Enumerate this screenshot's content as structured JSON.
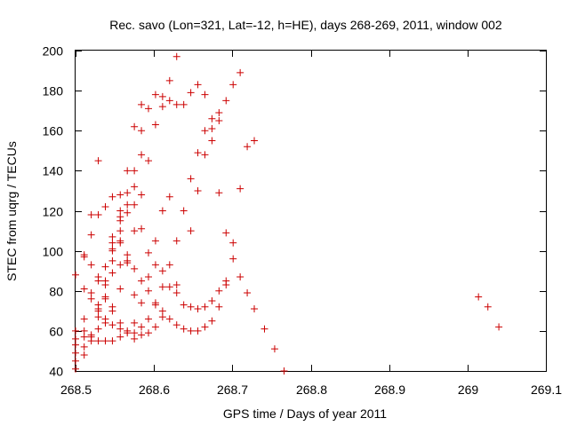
{
  "chart_data": {
    "type": "scatter",
    "title": "Rec. savo (Lon=321, Lat=-12, h=HE), days 268-269, 2011, window 002",
    "xlabel": "GPS time / Days of year 2011",
    "ylabel": "STEC from uqrg / TECUs",
    "xlim": [
      268.5,
      269.1
    ],
    "ylim": [
      40,
      200
    ],
    "xticks": [
      268.5,
      268.6,
      268.7,
      268.8,
      268.9,
      269,
      269.1
    ],
    "xtick_labels": [
      "268.5",
      "268.6",
      "268.7",
      "268.8",
      "268.9",
      "269",
      "269.1"
    ],
    "yticks": [
      40,
      60,
      80,
      100,
      120,
      140,
      160,
      180,
      200
    ],
    "ytick_labels": [
      "40",
      "60",
      "80",
      "100",
      "120",
      "140",
      "160",
      "180",
      "200"
    ],
    "marker": "+",
    "color": "#cc0000",
    "points": [
      [
        268.5,
        88
      ],
      [
        268.5,
        60
      ],
      [
        268.5,
        56
      ],
      [
        268.5,
        53
      ],
      [
        268.5,
        49
      ],
      [
        268.5,
        45
      ],
      [
        268.5,
        41
      ],
      [
        268.511,
        98
      ],
      [
        268.511,
        97
      ],
      [
        268.511,
        81
      ],
      [
        268.511,
        66
      ],
      [
        268.511,
        60
      ],
      [
        268.511,
        57
      ],
      [
        268.511,
        52
      ],
      [
        268.511,
        48
      ],
      [
        268.52,
        118
      ],
      [
        268.52,
        108
      ],
      [
        268.52,
        93
      ],
      [
        268.52,
        79
      ],
      [
        268.52,
        76
      ],
      [
        268.52,
        58
      ],
      [
        268.52,
        57
      ],
      [
        268.52,
        55
      ],
      [
        268.529,
        145
      ],
      [
        268.529,
        118
      ],
      [
        268.529,
        87
      ],
      [
        268.529,
        85
      ],
      [
        268.529,
        73
      ],
      [
        268.529,
        71
      ],
      [
        268.529,
        70
      ],
      [
        268.529,
        67
      ],
      [
        268.529,
        61
      ],
      [
        268.529,
        55
      ],
      [
        268.538,
        122
      ],
      [
        268.538,
        92
      ],
      [
        268.538,
        85
      ],
      [
        268.538,
        83
      ],
      [
        268.538,
        77
      ],
      [
        268.538,
        76
      ],
      [
        268.538,
        66
      ],
      [
        268.538,
        64
      ],
      [
        268.538,
        55
      ],
      [
        268.547,
        127
      ],
      [
        268.547,
        107
      ],
      [
        268.547,
        104
      ],
      [
        268.547,
        101
      ],
      [
        268.547,
        100
      ],
      [
        268.547,
        95
      ],
      [
        268.547,
        89
      ],
      [
        268.547,
        72
      ],
      [
        268.547,
        70
      ],
      [
        268.547,
        63
      ],
      [
        268.547,
        55
      ],
      [
        268.557,
        128
      ],
      [
        268.557,
        120
      ],
      [
        268.557,
        117
      ],
      [
        268.557,
        115
      ],
      [
        268.557,
        110
      ],
      [
        268.557,
        105
      ],
      [
        268.557,
        104
      ],
      [
        268.557,
        93
      ],
      [
        268.557,
        81
      ],
      [
        268.557,
        64
      ],
      [
        268.557,
        61
      ],
      [
        268.557,
        57
      ],
      [
        268.566,
        140
      ],
      [
        268.566,
        129
      ],
      [
        268.566,
        123
      ],
      [
        268.566,
        119
      ],
      [
        268.566,
        98
      ],
      [
        268.566,
        95
      ],
      [
        268.566,
        94
      ],
      [
        268.566,
        60
      ],
      [
        268.566,
        59
      ],
      [
        268.575,
        162
      ],
      [
        268.575,
        140
      ],
      [
        268.575,
        132
      ],
      [
        268.575,
        123
      ],
      [
        268.575,
        110
      ],
      [
        268.575,
        91
      ],
      [
        268.575,
        78
      ],
      [
        268.575,
        64
      ],
      [
        268.575,
        59
      ],
      [
        268.575,
        56
      ],
      [
        268.584,
        173
      ],
      [
        268.584,
        160
      ],
      [
        268.584,
        148
      ],
      [
        268.584,
        128
      ],
      [
        268.584,
        111
      ],
      [
        268.584,
        85
      ],
      [
        268.584,
        74
      ],
      [
        268.584,
        62
      ],
      [
        268.584,
        58
      ],
      [
        268.593,
        171
      ],
      [
        268.593,
        145
      ],
      [
        268.593,
        99
      ],
      [
        268.593,
        87
      ],
      [
        268.593,
        80
      ],
      [
        268.593,
        66
      ],
      [
        268.593,
        59
      ],
      [
        268.602,
        178
      ],
      [
        268.602,
        163
      ],
      [
        268.602,
        105
      ],
      [
        268.602,
        93
      ],
      [
        268.602,
        74
      ],
      [
        268.602,
        73
      ],
      [
        268.602,
        62
      ],
      [
        268.611,
        177
      ],
      [
        268.611,
        172
      ],
      [
        268.611,
        120
      ],
      [
        268.611,
        90
      ],
      [
        268.611,
        82
      ],
      [
        268.611,
        70
      ],
      [
        268.611,
        67
      ],
      [
        268.62,
        185
      ],
      [
        268.62,
        175
      ],
      [
        268.62,
        127
      ],
      [
        268.62,
        93
      ],
      [
        268.62,
        82
      ],
      [
        268.62,
        66
      ],
      [
        268.629,
        197
      ],
      [
        268.629,
        173
      ],
      [
        268.629,
        105
      ],
      [
        268.629,
        83
      ],
      [
        268.629,
        79
      ],
      [
        268.629,
        63
      ],
      [
        268.638,
        173
      ],
      [
        268.638,
        120
      ],
      [
        268.638,
        73
      ],
      [
        268.638,
        61
      ],
      [
        268.647,
        179
      ],
      [
        268.647,
        136
      ],
      [
        268.647,
        110
      ],
      [
        268.647,
        72
      ],
      [
        268.647,
        60
      ],
      [
        268.656,
        183
      ],
      [
        268.656,
        149
      ],
      [
        268.656,
        130
      ],
      [
        268.656,
        71
      ],
      [
        268.656,
        60
      ],
      [
        268.665,
        178
      ],
      [
        268.665,
        160
      ],
      [
        268.665,
        148
      ],
      [
        268.665,
        72
      ],
      [
        268.665,
        62
      ],
      [
        268.674,
        166
      ],
      [
        268.674,
        161
      ],
      [
        268.674,
        155
      ],
      [
        268.674,
        75
      ],
      [
        268.674,
        65
      ],
      [
        268.683,
        169
      ],
      [
        268.683,
        165
      ],
      [
        268.683,
        129
      ],
      [
        268.683,
        80
      ],
      [
        268.683,
        72
      ],
      [
        268.692,
        175
      ],
      [
        268.692,
        109
      ],
      [
        268.692,
        85
      ],
      [
        268.692,
        83
      ],
      [
        268.701,
        183
      ],
      [
        268.701,
        104
      ],
      [
        268.701,
        96
      ],
      [
        268.71,
        189
      ],
      [
        268.71,
        131
      ],
      [
        268.71,
        87
      ],
      [
        268.719,
        152
      ],
      [
        268.719,
        79
      ],
      [
        268.728,
        155
      ],
      [
        268.728,
        71
      ],
      [
        268.741,
        61
      ],
      [
        268.754,
        51
      ],
      [
        268.766,
        40
      ],
      [
        269.014,
        77
      ],
      [
        269.026,
        72
      ],
      [
        269.04,
        62
      ]
    ]
  }
}
